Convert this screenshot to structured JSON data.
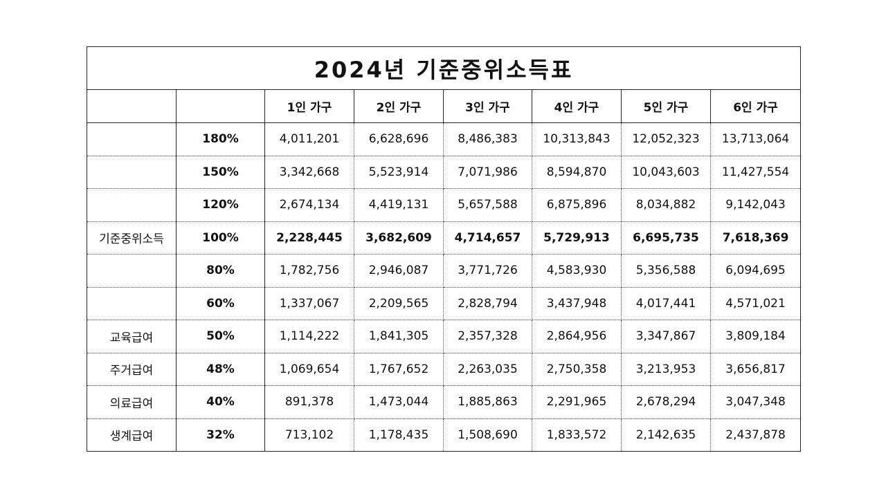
{
  "title": "2024년 기준중위소득표",
  "header": {
    "label_blank": "",
    "pct_blank": "",
    "columns": [
      "1인 가구",
      "2인 가구",
      "3인 가구",
      "4인 가구",
      "5인 가구",
      "6인 가구"
    ]
  },
  "rows": [
    {
      "label": "",
      "pct": "180%",
      "values": [
        "4,011,201",
        "6,628,696",
        "8,486,383",
        "10,313,843",
        "12,052,323",
        "13,713,064"
      ]
    },
    {
      "label": "",
      "pct": "150%",
      "values": [
        "3,342,668",
        "5,523,914",
        "7,071,986",
        "8,594,870",
        "10,043,603",
        "11,427,554"
      ]
    },
    {
      "label": "",
      "pct": "120%",
      "values": [
        "2,674,134",
        "4,419,131",
        "5,657,588",
        "6,875,896",
        "8,034,882",
        "9,142,043"
      ]
    },
    {
      "label": "기준중위소득",
      "pct": "100%",
      "values": [
        "2,228,445",
        "3,682,609",
        "4,714,657",
        "5,729,913",
        "6,695,735",
        "7,618,369"
      ]
    },
    {
      "label": "",
      "pct": "80%",
      "values": [
        "1,782,756",
        "2,946,087",
        "3,771,726",
        "4,583,930",
        "5,356,588",
        "6,094,695"
      ]
    },
    {
      "label": "",
      "pct": "60%",
      "values": [
        "1,337,067",
        "2,209,565",
        "2,828,794",
        "3,437,948",
        "4,017,441",
        "4,571,021"
      ]
    },
    {
      "label": "교육급여",
      "pct": "50%",
      "values": [
        "1,114,222",
        "1,841,305",
        "2,357,328",
        "2,864,956",
        "3,347,867",
        "3,809,184"
      ]
    },
    {
      "label": "주거급여",
      "pct": "48%",
      "values": [
        "1,069,654",
        "1,767,652",
        "2,263,035",
        "2,750,358",
        "3,213,953",
        "3,656,817"
      ]
    },
    {
      "label": "의료급여",
      "pct": "40%",
      "values": [
        "891,378",
        "1,473,044",
        "1,885,863",
        "2,291,965",
        "2,678,294",
        "3,047,348"
      ]
    },
    {
      "label": "생계급여",
      "pct": "32%",
      "values": [
        "713,102",
        "1,178,435",
        "1,508,690",
        "1,833,572",
        "2,142,635",
        "2,437,878"
      ]
    }
  ]
}
